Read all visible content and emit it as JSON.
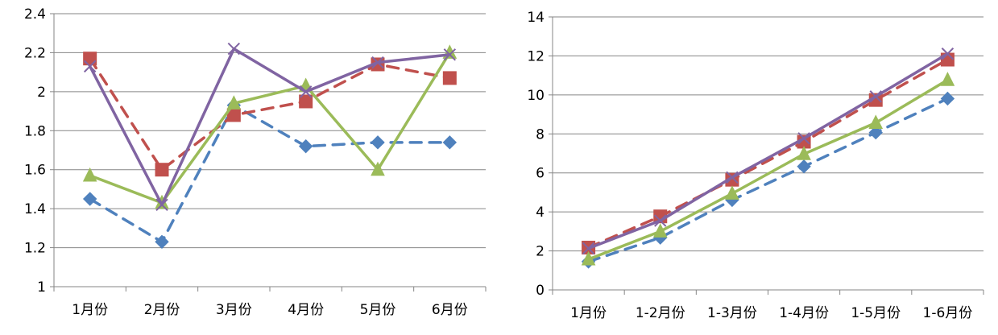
{
  "chart_data": [
    {
      "type": "line",
      "title": "",
      "xlabel": "",
      "ylabel": "",
      "categories": [
        "1月份",
        "2月份",
        "3月份",
        "4月份",
        "5月份",
        "6月份"
      ],
      "ylim": [
        1,
        2.4
      ],
      "yticks": [
        "1",
        "1.2",
        "1.4",
        "1.6",
        "1.8",
        "2",
        "2.2",
        "2.4"
      ],
      "yticks_values": [
        1,
        1.2,
        1.4,
        1.6,
        1.8,
        2,
        2.2,
        2.4
      ],
      "grid": "horizontal",
      "legend": "none",
      "series": [
        {
          "values": [
            1.45,
            1.23,
            1.93,
            1.72,
            1.74,
            1.74
          ],
          "color": "#4F81BD",
          "dash": true,
          "marker": "diamond"
        },
        {
          "values": [
            2.17,
            1.6,
            1.88,
            1.95,
            2.14,
            2.07
          ],
          "color": "#C0504D",
          "dash": true,
          "marker": "square"
        },
        {
          "values": [
            1.57,
            1.43,
            1.94,
            2.03,
            1.6,
            2.2
          ],
          "color": "#9BBB59",
          "dash": false,
          "marker": "triangle"
        },
        {
          "values": [
            2.13,
            1.42,
            2.22,
            2.0,
            2.15,
            2.19
          ],
          "color": "#8064A2",
          "dash": false,
          "marker": "x"
        }
      ]
    },
    {
      "type": "line",
      "title": "",
      "xlabel": "",
      "ylabel": "",
      "categories": [
        "1月份",
        "1-2月份",
        "1-3月份",
        "1-4月份",
        "1-5月份",
        "1-6月份"
      ],
      "ylim": [
        0,
        14
      ],
      "yticks": [
        "0",
        "2",
        "4",
        "6",
        "8",
        "10",
        "12",
        "14"
      ],
      "yticks_values": [
        0,
        2,
        4,
        6,
        8,
        10,
        12,
        14
      ],
      "grid": "horizontal",
      "legend": "none",
      "series": [
        {
          "values": [
            1.45,
            2.68,
            4.61,
            6.33,
            8.07,
            9.81
          ],
          "color": "#4F81BD",
          "dash": true,
          "marker": "diamond"
        },
        {
          "values": [
            2.17,
            3.77,
            5.65,
            7.6,
            9.74,
            11.81
          ],
          "color": "#C0504D",
          "dash": true,
          "marker": "square"
        },
        {
          "values": [
            1.57,
            3.0,
            4.94,
            6.97,
            8.57,
            10.77
          ],
          "color": "#9BBB59",
          "dash": false,
          "marker": "triangle"
        },
        {
          "values": [
            2.13,
            3.55,
            5.77,
            7.77,
            9.92,
            12.11
          ],
          "color": "#8064A2",
          "dash": false,
          "marker": "x"
        }
      ]
    }
  ],
  "style": {
    "grid_color": "#868686",
    "axis_color": "#868686"
  }
}
